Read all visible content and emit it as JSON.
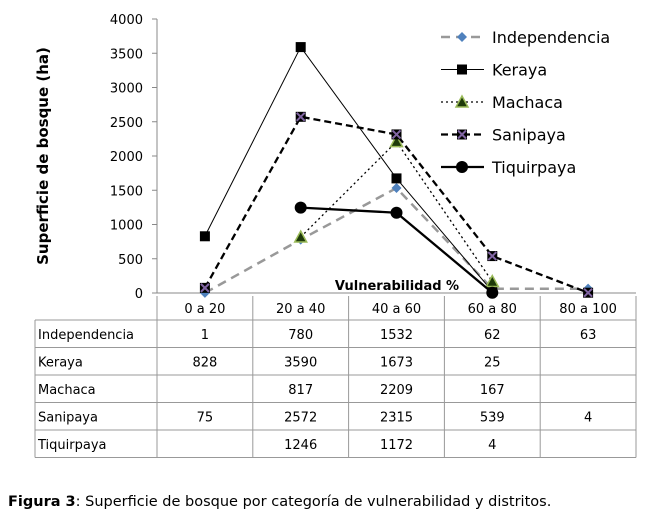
{
  "chart_data": {
    "type": "line",
    "ylabel": "Superficie de bosque (ha)",
    "xlabel": "Vulnerabilidad %",
    "ylim": [
      0,
      4000
    ],
    "yticks": [
      0,
      500,
      1000,
      1500,
      2000,
      2500,
      3000,
      3500,
      4000
    ],
    "categories": [
      "0 a 20",
      "20 a 40",
      "40 a 60",
      "60 a 80",
      "80 a 100"
    ],
    "legend_position": "top-right",
    "grid": false,
    "series": [
      {
        "name": "Independencia",
        "values": [
          1,
          780,
          1532,
          62,
          63
        ],
        "color": "#999999",
        "marker": "diamond",
        "marker_color": "#4f81bd",
        "dash": "dashed"
      },
      {
        "name": "Keraya",
        "values": [
          828,
          3590,
          1673,
          25,
          null
        ],
        "color": "#000000",
        "marker": "square",
        "marker_color": "#000000",
        "dash": "solid-thin"
      },
      {
        "name": "Machaca",
        "values": [
          null,
          817,
          2209,
          167,
          null
        ],
        "color": "#000000",
        "marker": "triangle",
        "marker_color": "#1e3a0a",
        "marker_edge": "#9bbb59",
        "dash": "dotted"
      },
      {
        "name": "Sanipaya",
        "values": [
          75,
          2572,
          2315,
          539,
          4
        ],
        "color": "#000000",
        "marker": "x-square",
        "marker_color": "#8064a2",
        "dash": "dashed-bold"
      },
      {
        "name": "Tiquirpaya",
        "values": [
          null,
          1246,
          1172,
          4,
          null
        ],
        "color": "#000000",
        "marker": "circle",
        "marker_color": "#000000",
        "dash": "solid-bold"
      }
    ]
  },
  "caption": {
    "label": "Figura 3",
    "text": ": Superficie de bosque por categoría de vulnerabilidad y distritos."
  }
}
